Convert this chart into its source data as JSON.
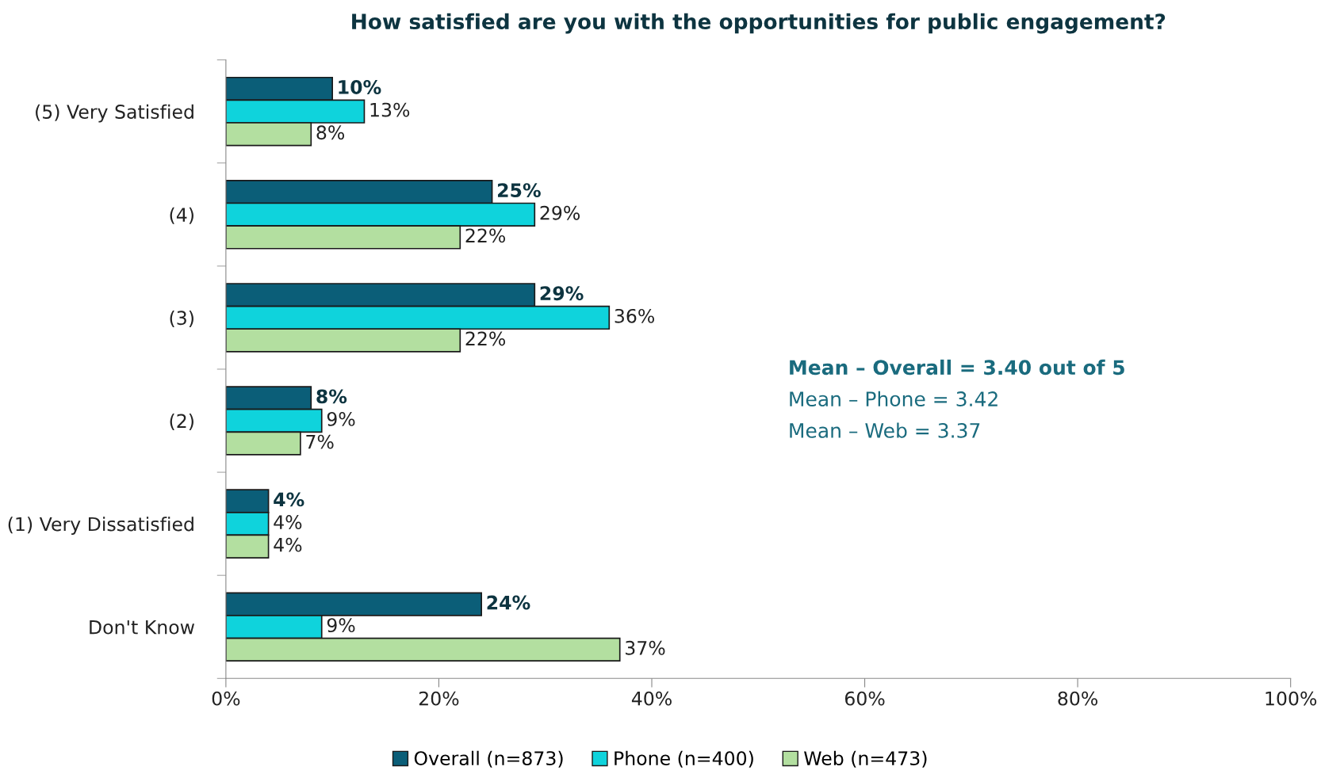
{
  "chart_data": {
    "type": "bar",
    "orientation": "horizontal",
    "title": "How satisfied are you with the opportunities for public engagement?",
    "categories": [
      "(5) Very Satisfied",
      "(4)",
      "(3)",
      "(2)",
      "(1) Very Dissatisfied",
      "Don't Know"
    ],
    "series": [
      {
        "name": "Overall (n=873)",
        "color": "#0b5e78",
        "values": [
          10,
          25,
          29,
          8,
          4,
          24
        ],
        "value_labels": [
          "10%",
          "25%",
          "29%",
          "8%",
          "4%",
          "24%"
        ]
      },
      {
        "name": "Phone (n=400)",
        "color": "#0fd3dc",
        "values": [
          13,
          29,
          36,
          9,
          4,
          9
        ],
        "value_labels": [
          "13%",
          "29%",
          "36%",
          "9%",
          "4%",
          "9%"
        ]
      },
      {
        "name": "Web (n=473)",
        "color": "#b3dfa0",
        "values": [
          8,
          22,
          22,
          7,
          4,
          37
        ],
        "value_labels": [
          "8%",
          "22%",
          "22%",
          "7%",
          "4%",
          "37%"
        ]
      }
    ],
    "xlim": [
      0,
      100
    ],
    "xticks": [
      {
        "value": 0,
        "label": "0%"
      },
      {
        "value": 20,
        "label": "20%"
      },
      {
        "value": 40,
        "label": "40%"
      },
      {
        "value": 60,
        "label": "60%"
      },
      {
        "value": 80,
        "label": "80%"
      },
      {
        "value": 100,
        "label": "100%"
      }
    ],
    "legend": "bottom",
    "grid": false,
    "annotations": [
      "Mean – Overall = 3.40 out of 5",
      "Mean – Phone = 3.42",
      "Mean – Web = 3.37"
    ]
  }
}
